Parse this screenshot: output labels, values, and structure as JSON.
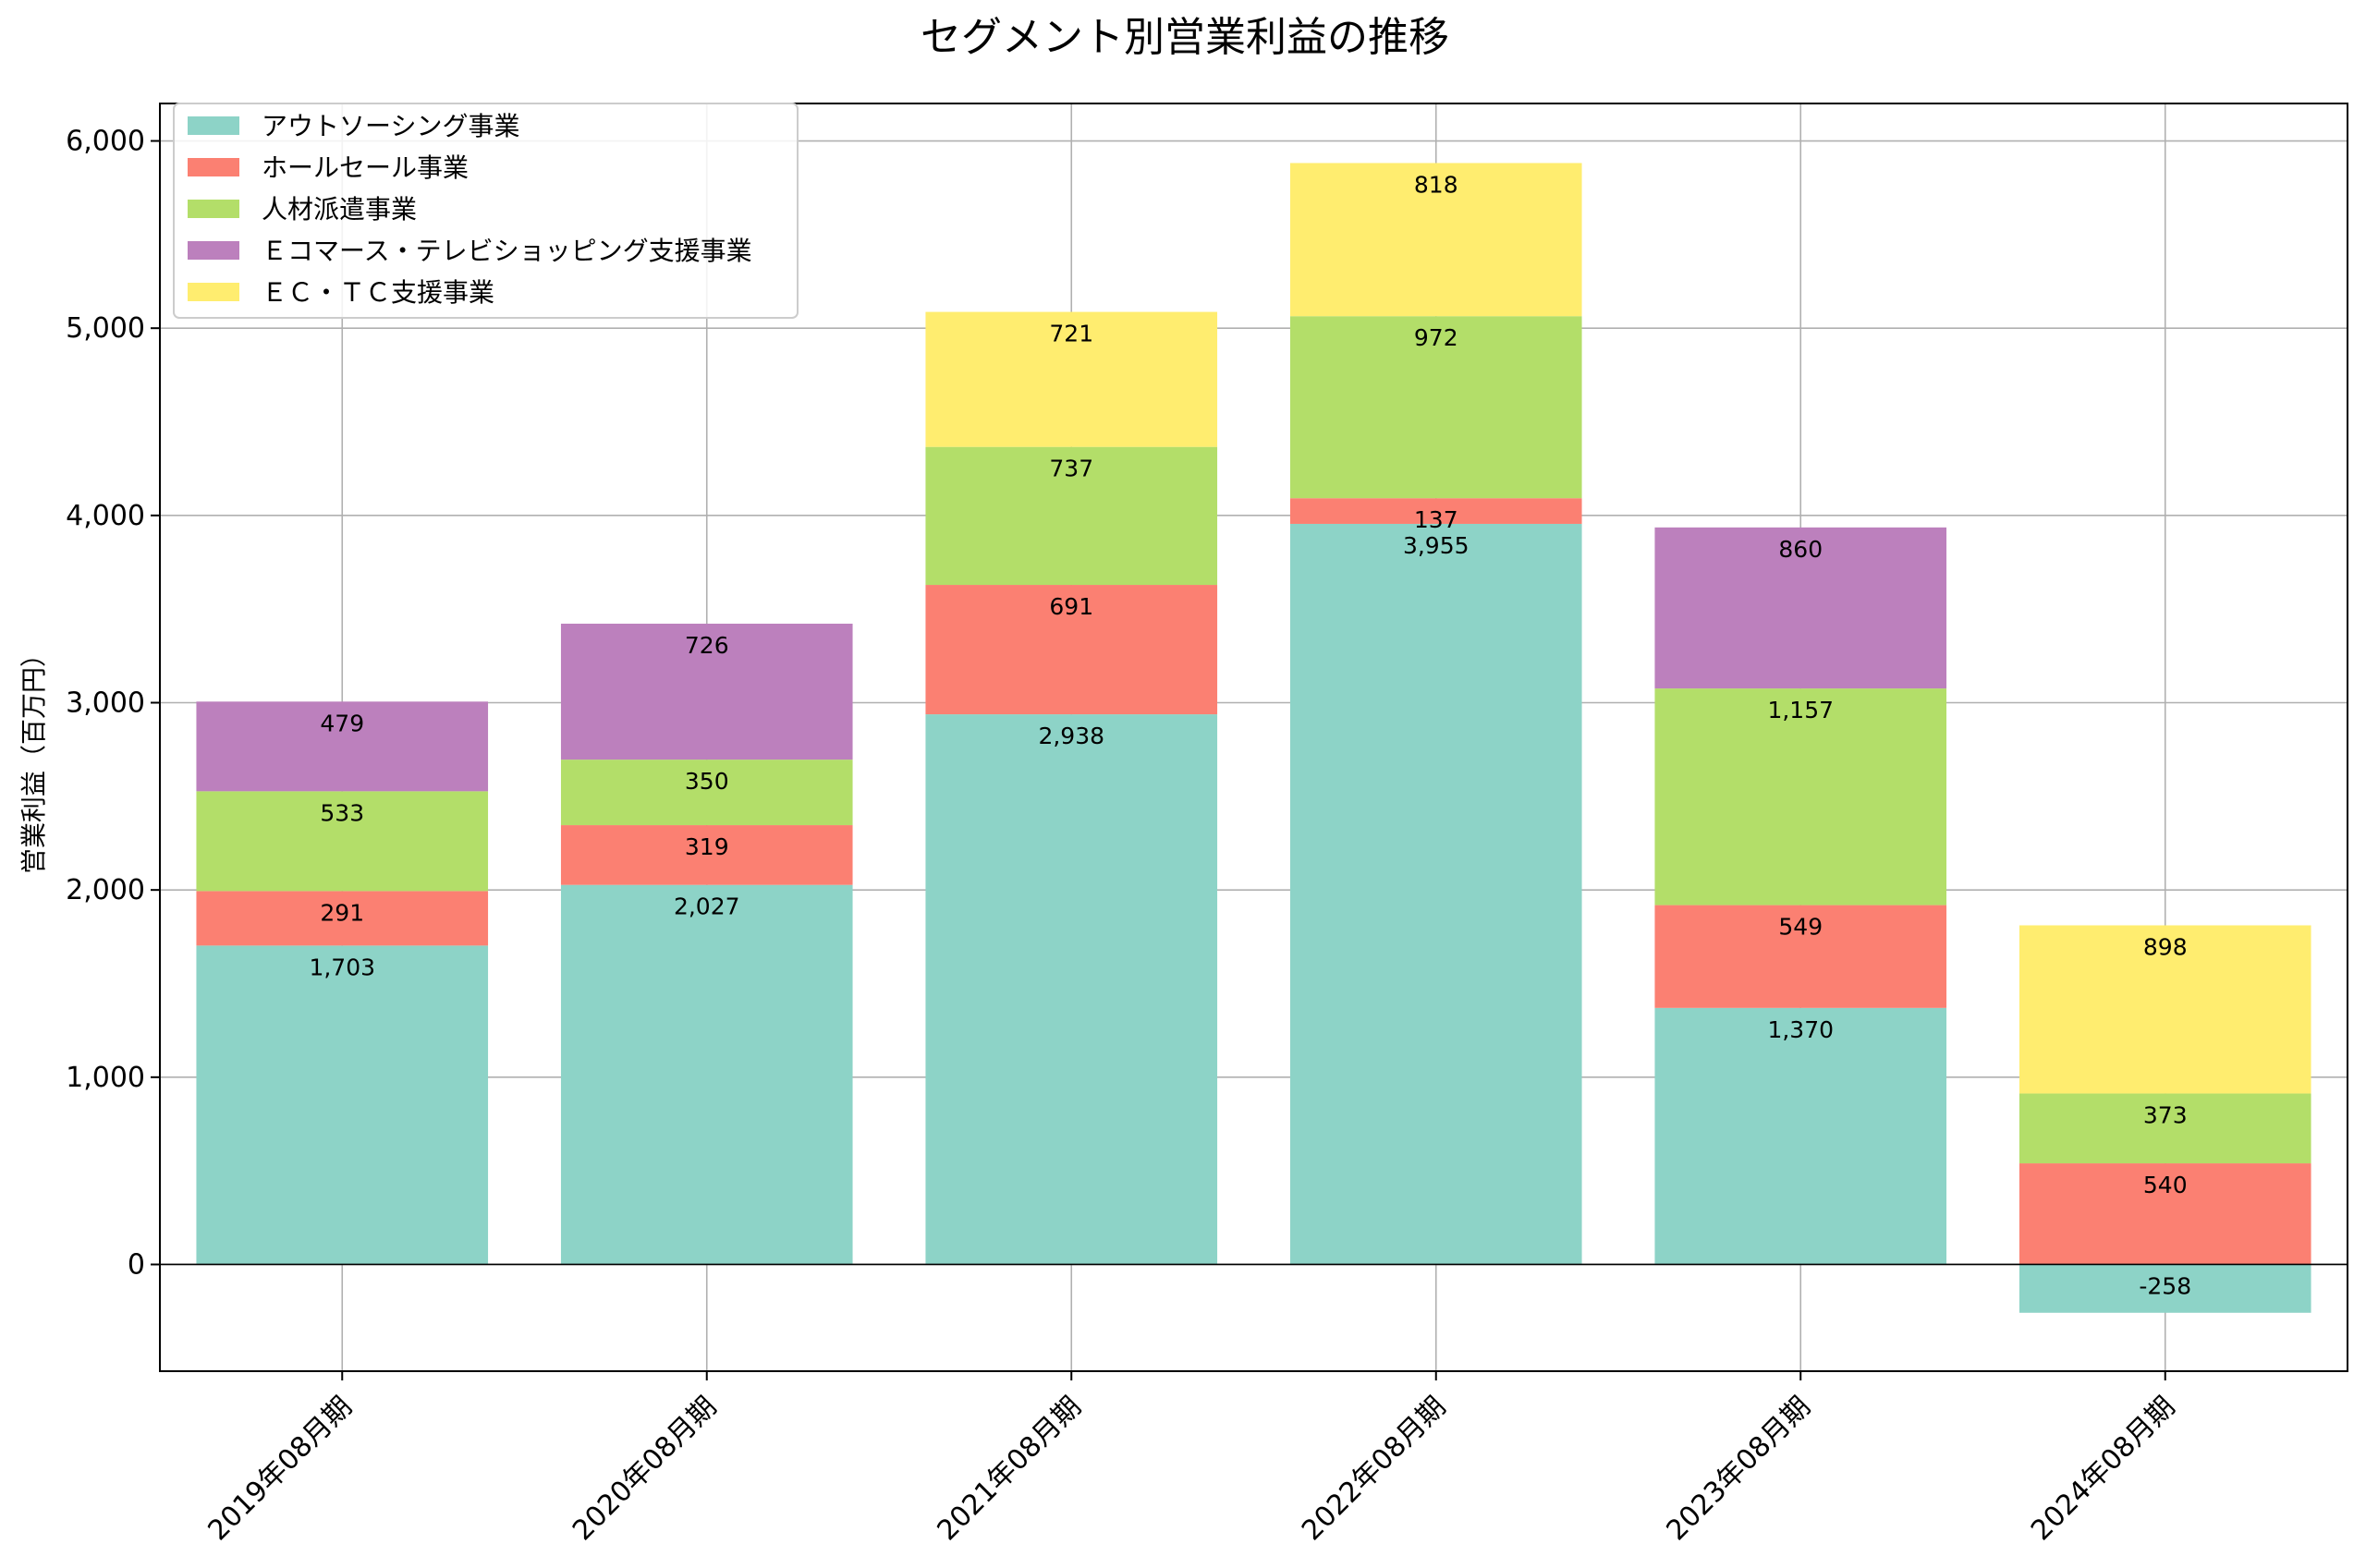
{
  "chart_data": {
    "type": "bar",
    "stacked": true,
    "title": "セグメント別営業利益の推移",
    "xlabel": "",
    "ylabel": "営業利益（百万円）",
    "ylim": [
      -570,
      6200
    ],
    "yticks": [
      0,
      1000,
      2000,
      3000,
      4000,
      5000,
      6000
    ],
    "ytick_labels": [
      "0",
      "1,000",
      "2,000",
      "3,000",
      "4,000",
      "5,000",
      "6,000"
    ],
    "grid": true,
    "legend_position": "top-left",
    "categories": [
      "2019年08月期",
      "2020年08月期",
      "2021年08月期",
      "2022年08月期",
      "2023年08月期",
      "2024年08月期"
    ],
    "series": [
      {
        "name": "アウトソーシング事業",
        "color": "#8dd3c7",
        "values": [
          1703,
          2027,
          2938,
          3955,
          1370,
          -258
        ]
      },
      {
        "name": "ホールセール事業",
        "color": "#fb8072",
        "values": [
          291,
          319,
          691,
          137,
          549,
          540
        ]
      },
      {
        "name": "人材派遣事業",
        "color": "#b3de69",
        "values": [
          533,
          350,
          737,
          972,
          1157,
          373
        ]
      },
      {
        "name": "Ｅコマース・テレビショッピング支援事業",
        "color": "#bc80bd",
        "values": [
          479,
          726,
          null,
          null,
          860,
          null
        ]
      },
      {
        "name": "ＥＣ・ＴＣ支援事業",
        "color": "#ffed6f",
        "values": [
          null,
          null,
          721,
          818,
          null,
          898
        ]
      }
    ]
  }
}
